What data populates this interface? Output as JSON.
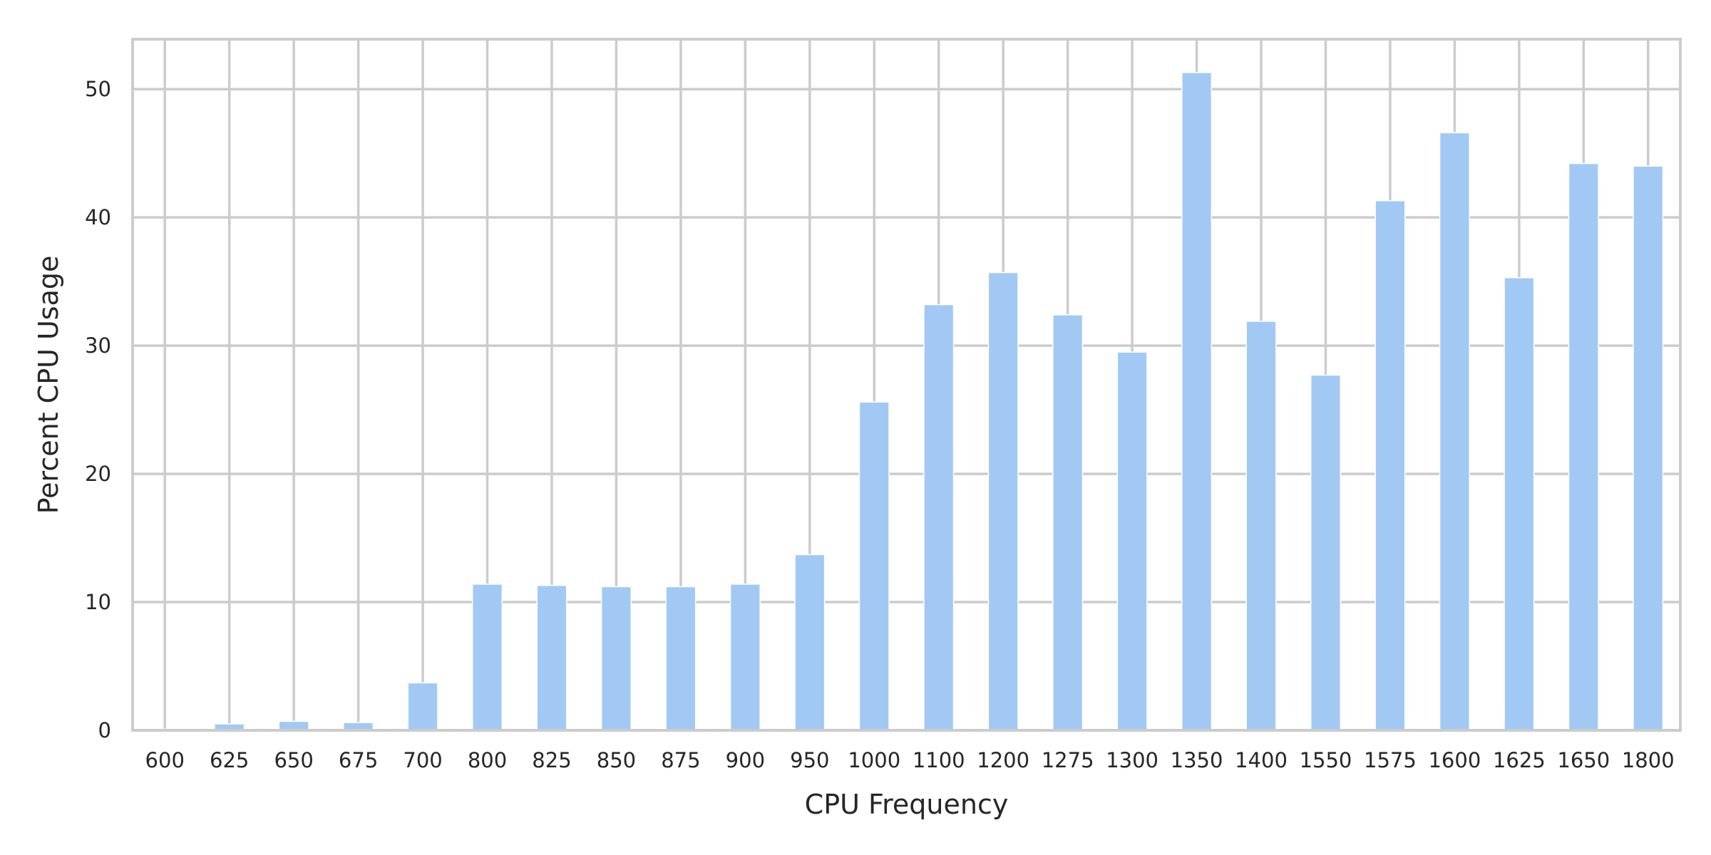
{
  "chart_data": {
    "type": "bar",
    "title": "",
    "xlabel": "CPU Frequency",
    "ylabel": "Percent CPU Usage",
    "categories": [
      "600",
      "625",
      "650",
      "675",
      "700",
      "800",
      "825",
      "850",
      "875",
      "900",
      "950",
      "1000",
      "1100",
      "1200",
      "1275",
      "1300",
      "1350",
      "1400",
      "1550",
      "1575",
      "1600",
      "1625",
      "1650",
      "1800"
    ],
    "values": [
      0.1,
      0.5,
      0.7,
      0.6,
      3.7,
      11.4,
      11.3,
      11.2,
      11.2,
      11.4,
      13.7,
      25.6,
      33.2,
      35.7,
      32.4,
      29.5,
      51.3,
      31.9,
      27.7,
      41.3,
      46.6,
      35.3,
      44.2,
      44.0
    ],
    "ylim": [
      0,
      53.9
    ],
    "yticks": [
      "0",
      "10",
      "20",
      "30",
      "40",
      "50"
    ],
    "grid": true,
    "legend": "none",
    "colors": {
      "bar": "#a1c9f4",
      "grid": "#cccccc",
      "frame": "#cccccc",
      "text": "#262626",
      "background": "#ffffff"
    }
  }
}
